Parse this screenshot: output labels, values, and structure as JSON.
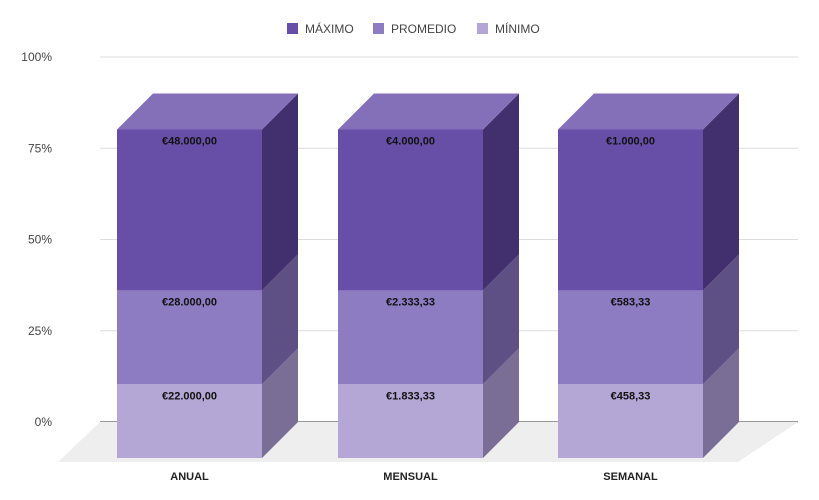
{
  "chart_data": {
    "type": "bar",
    "stacked": true,
    "normalized": true,
    "three_d": true,
    "categories": [
      "ANUAL",
      "MENSUAL",
      "SEMANAL"
    ],
    "series": [
      {
        "name": "MÍNIMO",
        "values": [
          22000,
          1833.33,
          458.33
        ],
        "labels": [
          "€22.000,00",
          "€1.833,33",
          "€458,33"
        ],
        "color": "#b4a7d6",
        "side_color": "#7a6e96",
        "top_color": "#c6bce0"
      },
      {
        "name": "PROMEDIO",
        "values": [
          28000,
          2333.33,
          583.33
        ],
        "labels": [
          "€28.000,00",
          "€2.333,33",
          "€583,33"
        ],
        "color": "#8e7cc3",
        "side_color": "#5e5085",
        "top_color": "#a294d0"
      },
      {
        "name": "MÁXIMO",
        "values": [
          48000,
          4000,
          1000
        ],
        "labels": [
          "€48.000,00",
          "€4.000,00",
          "€1.000,00"
        ],
        "color": "#674ea7",
        "side_color": "#41306d",
        "top_color": "#8370b8"
      }
    ],
    "legend_order": [
      "MÁXIMO",
      "PROMEDIO",
      "MÍNIMO"
    ],
    "legend_position": "top",
    "y_ticks": [
      "0%",
      "25%",
      "50%",
      "75%",
      "100%"
    ],
    "ylim": [
      0,
      100
    ],
    "grid": true
  }
}
